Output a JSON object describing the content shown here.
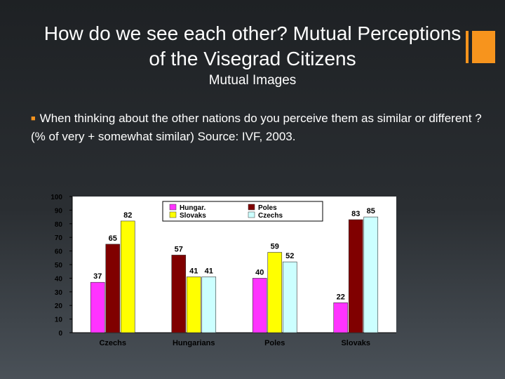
{
  "slide": {
    "title": "How do we see each other? Mutual Perceptions of the Visegrad Citizens",
    "subtitle": "Mutual Images",
    "bullet": "When thinking about the other nations do you perceive them as similar or different ? (% of very + somewhat similar) Source: IVF, 2003."
  },
  "colors": {
    "accent": "#f7941d",
    "Hungar.": "#ff33ff",
    "Poles": "#800000",
    "Slovaks": "#ffff00",
    "Czechs": "#ccffff"
  },
  "chart_data": {
    "type": "bar",
    "categories": [
      "Czechs",
      "Hungarians",
      "Poles",
      "Slovaks"
    ],
    "ylim": [
      0,
      100
    ],
    "yticks": [
      0,
      10,
      20,
      30,
      40,
      50,
      60,
      70,
      80,
      90,
      100
    ],
    "grid": false,
    "legend_position": "top",
    "series": [
      {
        "name": "Hungar.",
        "values": [
          37,
          null,
          40,
          22
        ]
      },
      {
        "name": "Poles",
        "values": [
          65,
          57,
          null,
          83
        ]
      },
      {
        "name": "Slovaks",
        "values": [
          82,
          41,
          59,
          null
        ]
      },
      {
        "name": "Czechs",
        "values": [
          null,
          41,
          52,
          85
        ]
      }
    ]
  }
}
